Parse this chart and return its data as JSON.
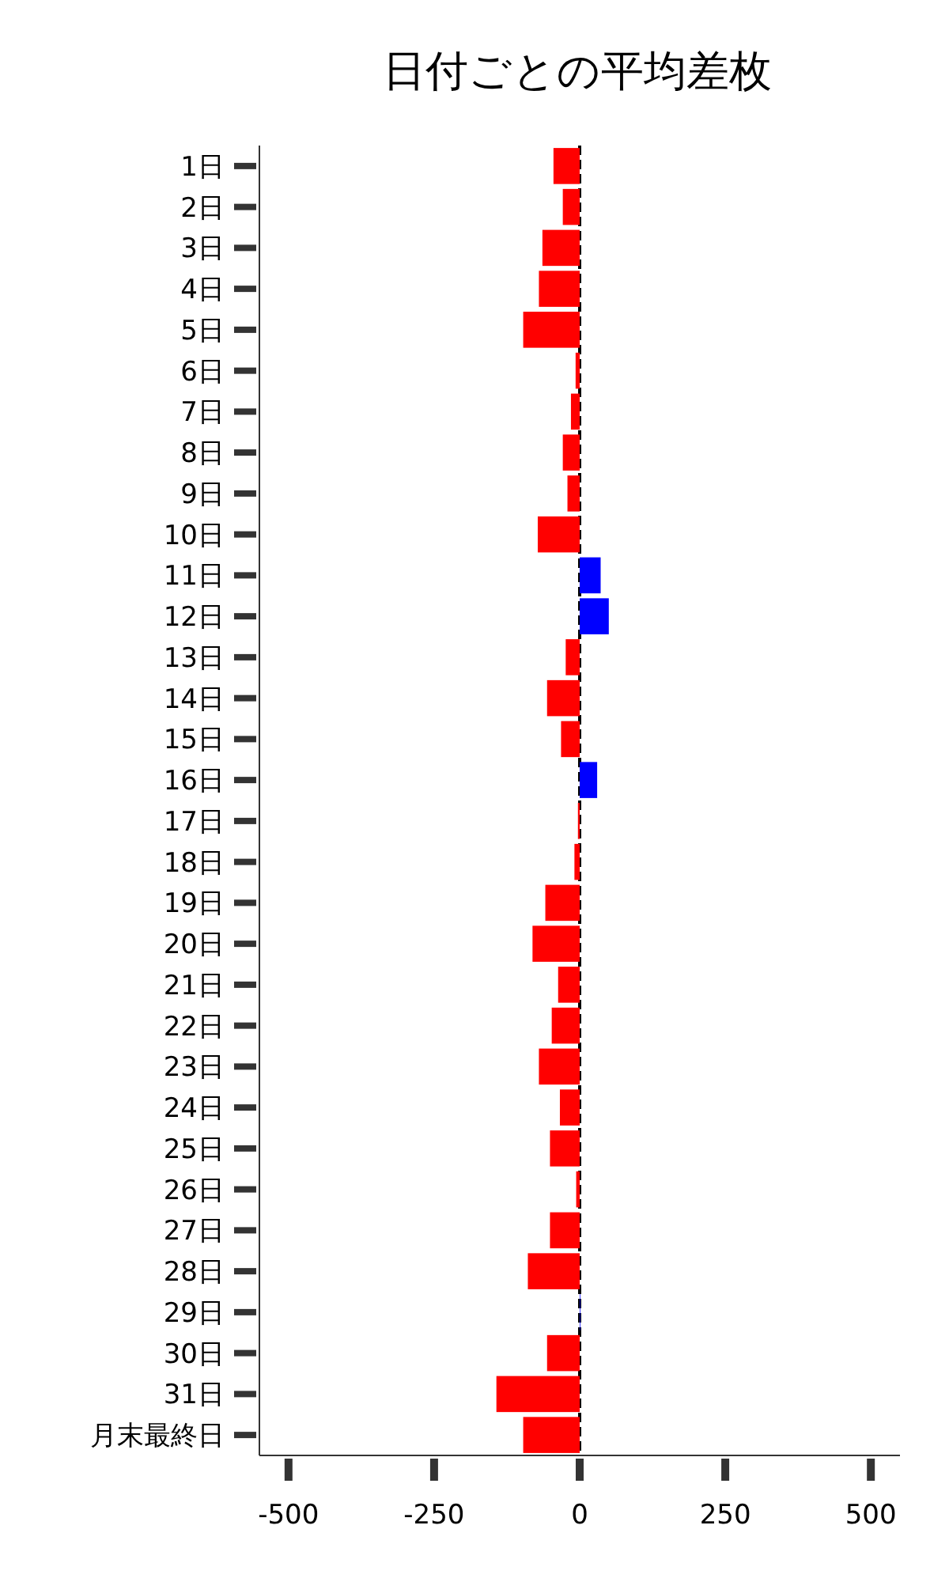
{
  "chart_data": {
    "type": "bar",
    "orientation": "horizontal",
    "title": "日付ごとの平均差枚",
    "categories": [
      "1日",
      "2日",
      "3日",
      "4日",
      "5日",
      "6日",
      "7日",
      "8日",
      "9日",
      "10日",
      "11日",
      "12日",
      "13日",
      "14日",
      "15日",
      "16日",
      "17日",
      "18日",
      "19日",
      "20日",
      "21日",
      "22日",
      "23日",
      "24日",
      "25日",
      "26日",
      "27日",
      "28日",
      "29日",
      "30日",
      "31日",
      "月末最終日"
    ],
    "values": [
      -45,
      -29,
      -64,
      -70,
      -97,
      -7,
      -15,
      -29,
      -21,
      -72,
      36,
      50,
      -24,
      -56,
      -32,
      30,
      -3,
      -9,
      -59,
      -81,
      -37,
      -48,
      -70,
      -34,
      -51,
      -6,
      -51,
      -89,
      1,
      -56,
      -143,
      -97
    ],
    "colors": [
      "#ff0000",
      "#ff0000",
      "#ff0000",
      "#ff0000",
      "#ff0000",
      "#ff0000",
      "#ff0000",
      "#ff0000",
      "#ff0000",
      "#ff0000",
      "#0000ff",
      "#0000ff",
      "#ff0000",
      "#ff0000",
      "#ff0000",
      "#0000ff",
      "#ff0000",
      "#ff0000",
      "#ff0000",
      "#ff0000",
      "#ff0000",
      "#ff0000",
      "#ff0000",
      "#ff0000",
      "#ff0000",
      "#ff0000",
      "#ff0000",
      "#ff0000",
      "#0000ff",
      "#ff0000",
      "#ff0000",
      "#ff0000"
    ],
    "xlim": [
      -550,
      550
    ],
    "xticks": [
      -500,
      -250,
      0,
      250,
      500
    ],
    "ref_lines": [
      {
        "axis": "x",
        "value": 0,
        "color": "#000000",
        "line_style": "dashed"
      }
    ],
    "grid": false
  }
}
